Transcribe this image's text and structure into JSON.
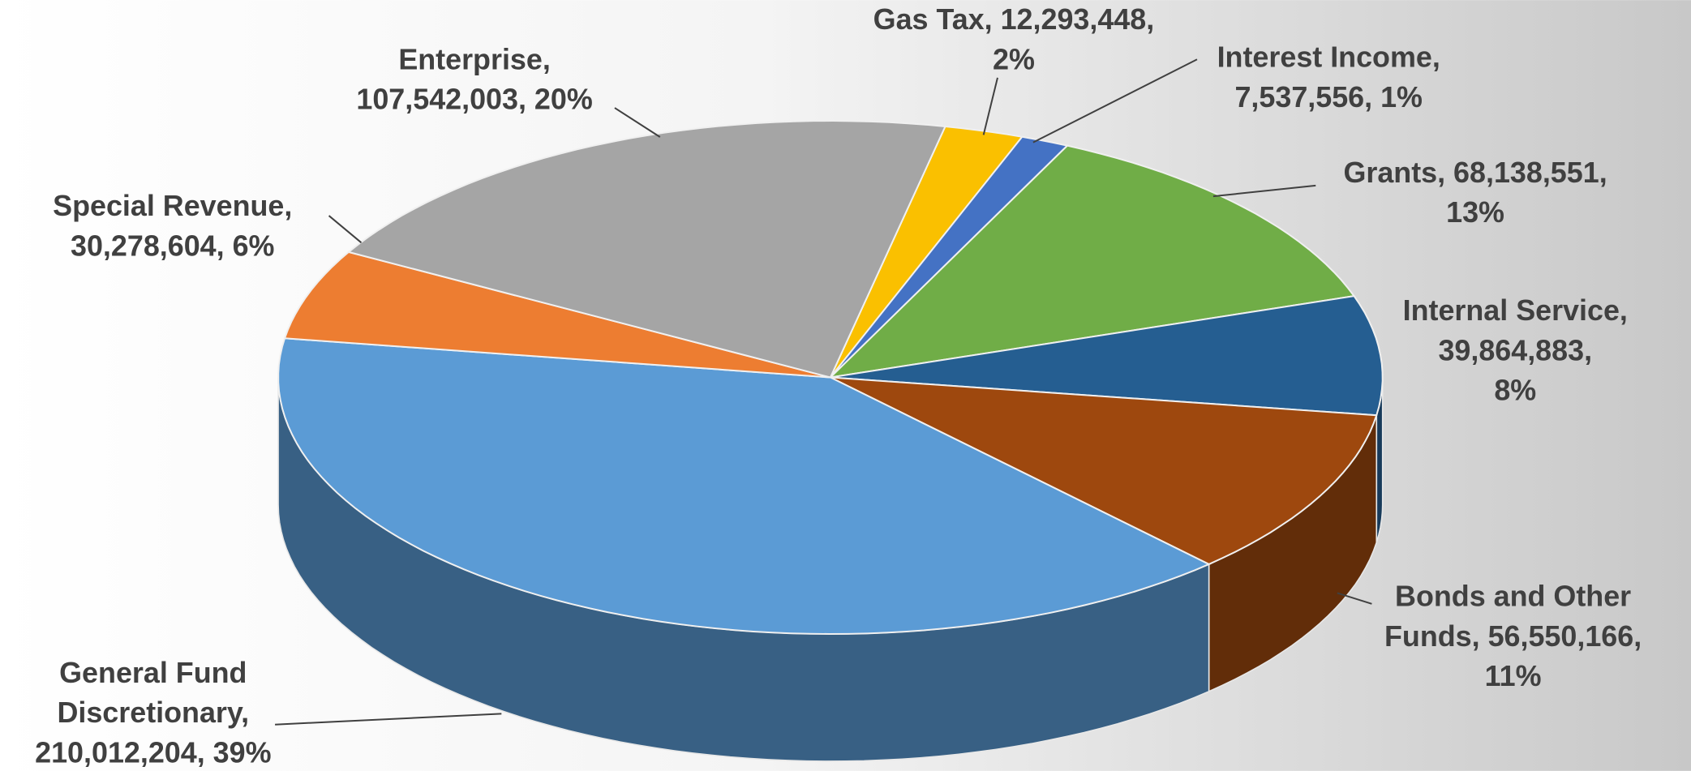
{
  "chart_data": {
    "type": "pie3d",
    "labels": [
      [
        "Gas Tax, 12,293,448,",
        "2%"
      ],
      [
        "Interest Income,",
        "7,537,556, 1%"
      ],
      [
        "Grants, 68,138,551,",
        "13%"
      ],
      [
        "Internal Service,",
        "39,864,883,",
        "8%"
      ],
      [
        "Bonds and Other",
        "Funds, 56,550,166,",
        "11%"
      ],
      [
        "General Fund",
        "Discretionary,",
        "210,012,204, 39%"
      ],
      [
        "Special Revenue,",
        "30,278,604, 6%"
      ],
      [
        "Enterprise,",
        "107,542,003, 20%"
      ]
    ],
    "values": [
      12293448,
      7537556,
      68138551,
      39864883,
      56550166,
      210012204,
      30278604,
      107542003
    ],
    "colors": [
      "#fac000",
      "#4472c4",
      "#70ad47",
      "#255e91",
      "#9e480e",
      "#5b9bd5",
      "#ed7d31",
      "#a5a5a5"
    ]
  }
}
